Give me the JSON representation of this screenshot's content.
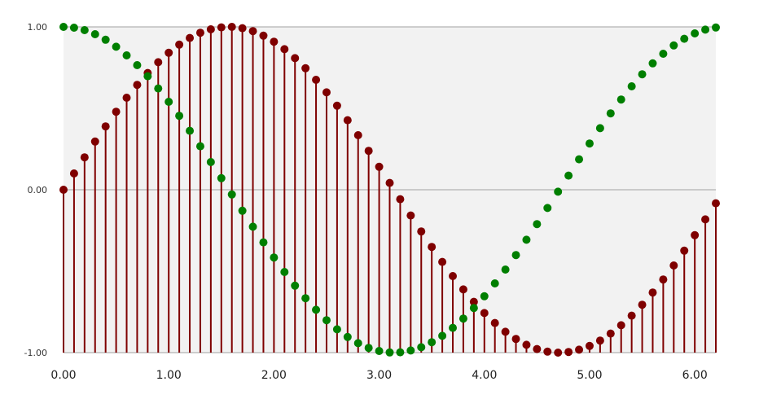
{
  "chart_data": {
    "type": "scatter",
    "title": "",
    "xlabel": "",
    "ylabel": "",
    "xlim": [
      0,
      6.2
    ],
    "ylim": [
      -1,
      1
    ],
    "x_ticks": [
      "0.00",
      "1.00",
      "2.00",
      "3.00",
      "4.00",
      "5.00",
      "6.00"
    ],
    "y_ticks": [
      "1.00",
      "0.00",
      "-1.00"
    ],
    "grid": "horizontal",
    "plot_background": "#f2f2f2",
    "x": [
      0.0,
      0.1,
      0.2,
      0.3,
      0.4,
      0.5,
      0.6,
      0.7,
      0.8,
      0.9,
      1.0,
      1.1,
      1.2,
      1.3,
      1.4,
      1.5,
      1.6,
      1.7,
      1.8,
      1.9,
      2.0,
      2.1,
      2.2,
      2.3,
      2.4,
      2.5,
      2.6,
      2.7,
      2.8,
      2.9,
      3.0,
      3.1,
      3.2,
      3.3,
      3.4,
      3.5,
      3.6,
      3.7,
      3.8,
      3.9,
      4.0,
      4.1,
      4.2,
      4.3,
      4.4,
      4.5,
      4.6,
      4.7,
      4.8,
      4.9,
      5.0,
      5.1,
      5.2,
      5.3,
      5.4,
      5.5,
      5.6,
      5.7,
      5.8,
      5.9,
      6.0,
      6.1,
      6.2
    ],
    "series": [
      {
        "style": "stem",
        "color": "#7f0000",
        "values": [
          0.0,
          0.1,
          0.199,
          0.296,
          0.389,
          0.479,
          0.565,
          0.644,
          0.717,
          0.783,
          0.841,
          0.891,
          0.932,
          0.964,
          0.985,
          0.997,
          1.0,
          0.992,
          0.974,
          0.946,
          0.909,
          0.863,
          0.808,
          0.746,
          0.675,
          0.598,
          0.516,
          0.427,
          0.335,
          0.239,
          0.141,
          0.042,
          -0.058,
          -0.158,
          -0.256,
          -0.351,
          -0.443,
          -0.53,
          -0.612,
          -0.688,
          -0.757,
          -0.818,
          -0.872,
          -0.916,
          -0.952,
          -0.978,
          -0.994,
          -1.0,
          -0.996,
          -0.982,
          -0.959,
          -0.926,
          -0.883,
          -0.832,
          -0.773,
          -0.706,
          -0.631,
          -0.551,
          -0.465,
          -0.374,
          -0.279,
          -0.182,
          -0.083
        ]
      },
      {
        "style": "points",
        "color": "#007f00",
        "values": [
          1.0,
          0.995,
          0.98,
          0.955,
          0.921,
          0.878,
          0.825,
          0.765,
          0.697,
          0.622,
          0.54,
          0.454,
          0.362,
          0.267,
          0.17,
          0.071,
          -0.029,
          -0.129,
          -0.227,
          -0.323,
          -0.416,
          -0.505,
          -0.589,
          -0.666,
          -0.737,
          -0.801,
          -0.857,
          -0.904,
          -0.942,
          -0.971,
          -0.99,
          -0.999,
          -0.998,
          -0.987,
          -0.967,
          -0.936,
          -0.897,
          -0.848,
          -0.791,
          -0.726,
          -0.654,
          -0.575,
          -0.49,
          -0.401,
          -0.307,
          -0.211,
          -0.112,
          -0.012,
          0.087,
          0.187,
          0.284,
          0.378,
          0.469,
          0.554,
          0.635,
          0.709,
          0.776,
          0.835,
          0.886,
          0.927,
          0.96,
          0.983,
          0.996
        ]
      }
    ]
  }
}
